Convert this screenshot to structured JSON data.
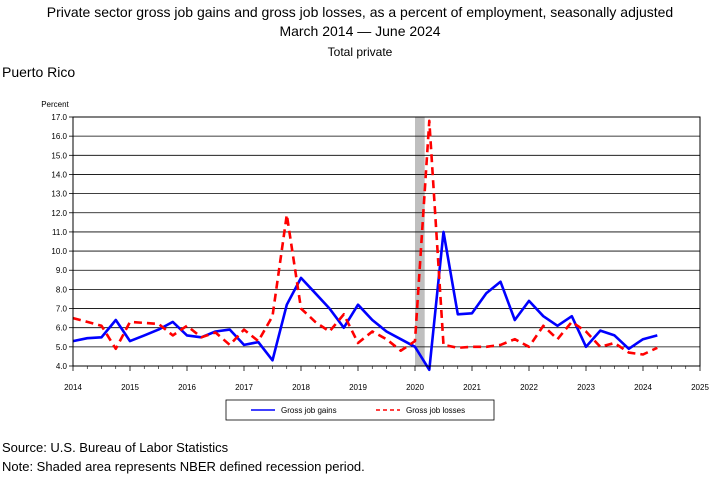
{
  "header": {
    "title": "Private sector gross job gains and gross job losses, as a percent of employment, seasonally adjusted",
    "subtitle": "March 2014 — June 2024",
    "subtitle2": "Total private",
    "region": "Puerto Rico"
  },
  "footer": {
    "source": "Source: U.S. Bureau of Labor Statistics",
    "note": "Note: Shaded area represents NBER defined recession period."
  },
  "chart_data": {
    "type": "line",
    "ylabel": "Percent",
    "ylim": [
      4.0,
      17.0
    ],
    "xlim": [
      2014,
      2025
    ],
    "grid": true,
    "legend_placement": "bottom-center",
    "yticks": [
      "4.0",
      "5.0",
      "6.0",
      "7.0",
      "8.0",
      "9.0",
      "10.0",
      "11.0",
      "12.0",
      "13.0",
      "14.0",
      "15.0",
      "16.0",
      "17.0"
    ],
    "xticks": [
      "2014",
      "2015",
      "2016",
      "2017",
      "2018",
      "2019",
      "2020",
      "2021",
      "2022",
      "2023",
      "2024",
      "2025"
    ],
    "recession": {
      "start": 2020.0,
      "end": 2020.17,
      "color": "#bfbfbf"
    },
    "series": [
      {
        "name": "Gross job gains",
        "color": "#0000ff",
        "dash": "solid",
        "x": [
          2014.0,
          2014.25,
          2014.5,
          2014.75,
          2015.0,
          2015.25,
          2015.5,
          2015.75,
          2016.0,
          2016.25,
          2016.5,
          2016.75,
          2017.0,
          2017.25,
          2017.5,
          2017.75,
          2018.0,
          2018.25,
          2018.5,
          2018.75,
          2019.0,
          2019.25,
          2019.5,
          2019.75,
          2020.0,
          2020.25,
          2020.5,
          2020.75,
          2021.0,
          2021.25,
          2021.5,
          2021.75,
          2022.0,
          2022.25,
          2022.5,
          2022.75,
          2023.0,
          2023.25,
          2023.5,
          2023.75,
          2024.0,
          2024.25
        ],
        "y": [
          5.3,
          5.45,
          5.5,
          6.4,
          5.3,
          5.6,
          5.9,
          6.3,
          5.6,
          5.5,
          5.8,
          5.9,
          5.1,
          5.25,
          4.3,
          7.2,
          8.6,
          7.8,
          7.0,
          6.0,
          7.2,
          6.4,
          5.8,
          5.4,
          5.0,
          3.8,
          11.0,
          6.7,
          6.75,
          7.8,
          8.4,
          6.4,
          7.4,
          6.6,
          6.1,
          6.6,
          5.0,
          5.85,
          5.6,
          4.9,
          5.4,
          5.6
        ]
      },
      {
        "name": "Gross job losses",
        "color": "#ff0000",
        "dash": "dashed",
        "x": [
          2014.0,
          2014.25,
          2014.5,
          2014.75,
          2015.0,
          2015.25,
          2015.5,
          2015.75,
          2016.0,
          2016.25,
          2016.5,
          2016.75,
          2017.0,
          2017.25,
          2017.5,
          2017.75,
          2018.0,
          2018.25,
          2018.5,
          2018.75,
          2019.0,
          2019.25,
          2019.5,
          2019.75,
          2020.0,
          2020.25,
          2020.5,
          2020.75,
          2021.0,
          2021.25,
          2021.5,
          2021.75,
          2022.0,
          2022.25,
          2022.5,
          2022.75,
          2023.0,
          2023.25,
          2023.5,
          2023.75,
          2024.0,
          2024.25
        ],
        "y": [
          6.5,
          6.3,
          6.1,
          4.9,
          6.3,
          6.25,
          6.2,
          5.6,
          6.1,
          5.5,
          5.75,
          5.1,
          5.9,
          5.3,
          6.6,
          11.9,
          7.0,
          6.3,
          5.8,
          6.7,
          5.2,
          5.8,
          5.4,
          4.8,
          5.3,
          16.8,
          5.1,
          4.95,
          5.0,
          5.0,
          5.1,
          5.4,
          5.0,
          6.1,
          5.4,
          6.3,
          5.8,
          5.0,
          5.2,
          4.7,
          4.6,
          4.95
        ]
      }
    ]
  }
}
